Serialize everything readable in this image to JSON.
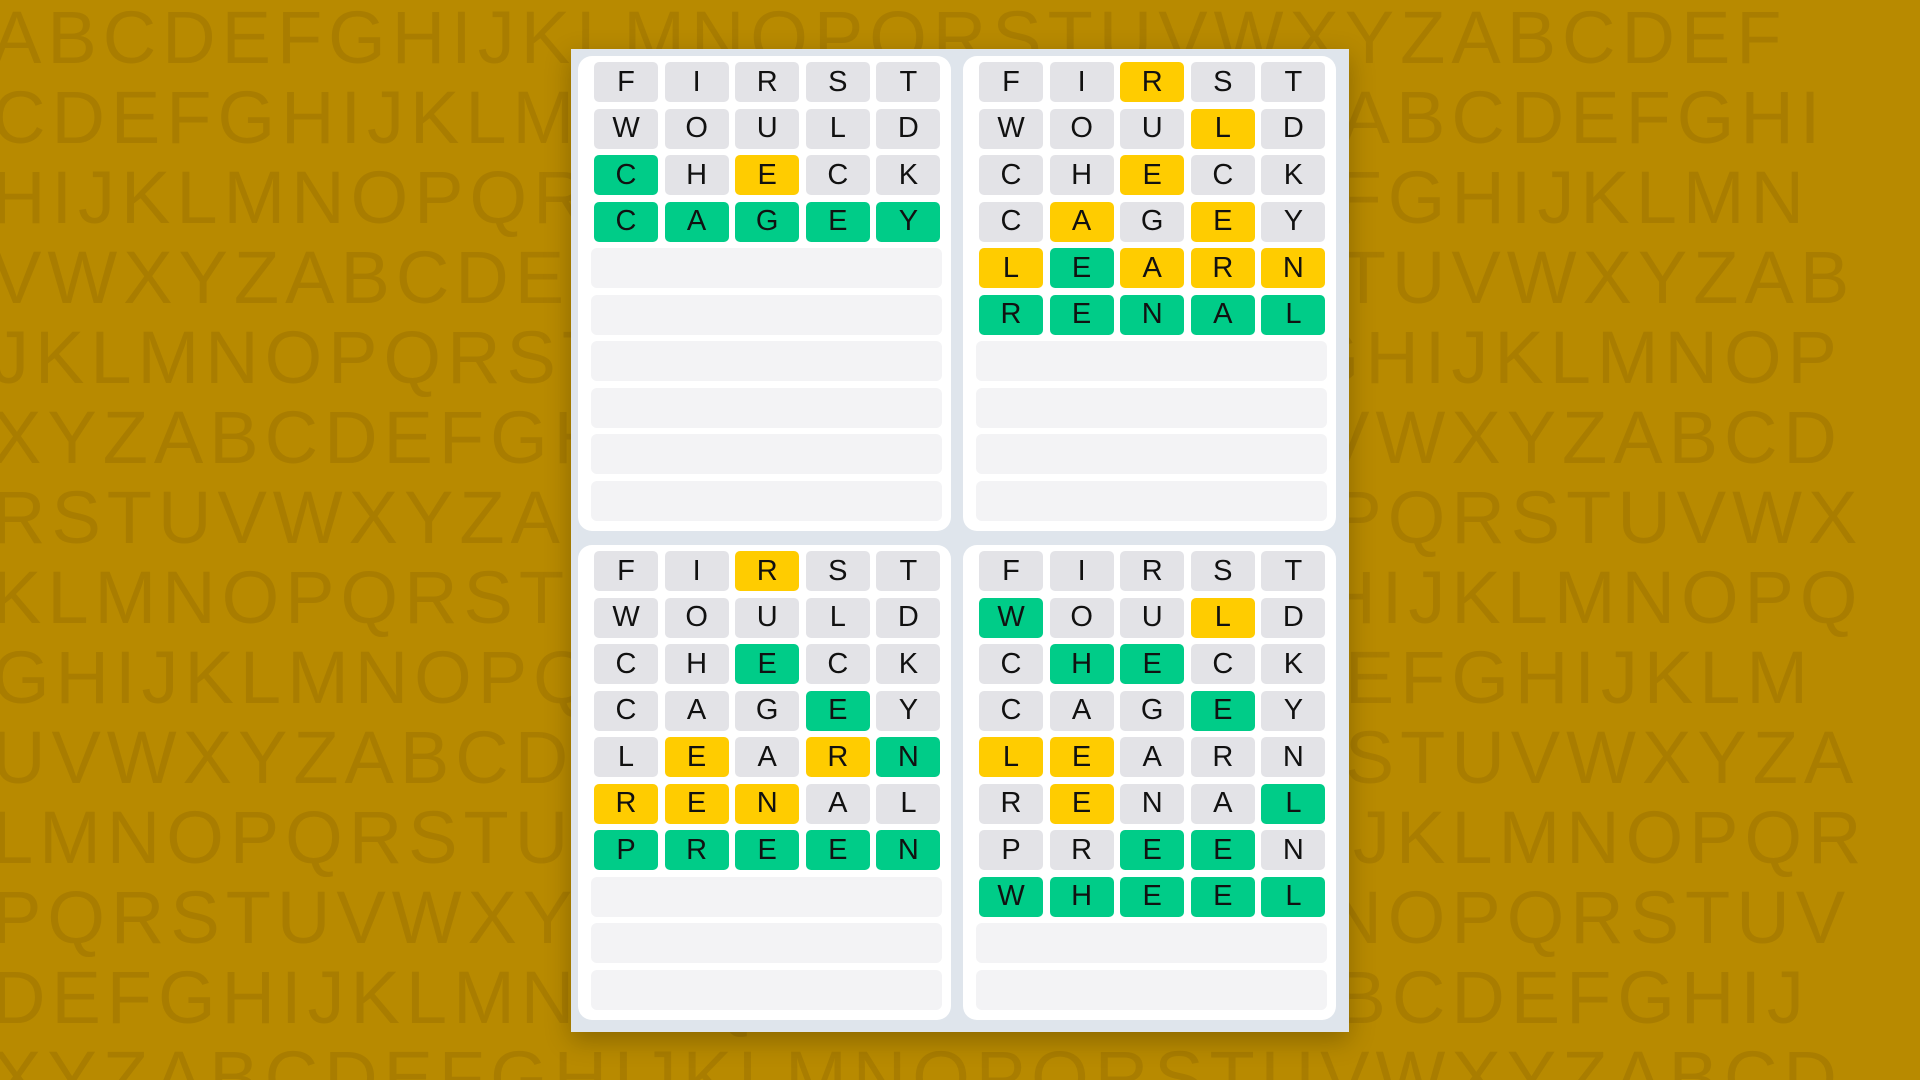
{
  "background_rows": [
    "ABCDEFGHIJKLMNOPQRSTUVWXYZABCDEF",
    "CDEFGHIJKLMNOPQRSTUVWXYZABCDEFGHI",
    "HIJKLMNOPQRSTUVWXYZABCDEFGHIJKLMN",
    "VWXYZABCDEFGHIJKLMNOPQRSTUVWXYZAB",
    "JKLMNOPQRSTUVWXYZABCDEFGHIJKLMNOP",
    "XYZABCDEFGHIJKLMNOPQRSTUVWXYZABCD",
    "RSTUVWXYZABCDEFGHIJKLMNOPQRSTUVWX",
    "KLMNOPQRSTUVWXYZABCDEFGHIJKLMNOPQ",
    "GHIJKLMNOPQRSTUVWXYZABCDEFGHIJKLM",
    "UVWXYZABCDEFGHIJKLMNOPQRSTUVWXYZA",
    "LMNOPQRSTUVWXYZABCDEFGHIJKLMNOPQR",
    "PQRSTUVWXYZABCDEFGHIJKLMNOPQRSTUV",
    "DEFGHIJKLMNOPQRSTUVWXYZABCDEFGHIJ",
    "XYZABCDEFGHIJKLMNOPQRSTUVWXYZABCD"
  ],
  "colors": {
    "correct": "#00cc88",
    "present": "#ffcc00",
    "absent": "#e3e3e7",
    "empty": "#f3f3f5",
    "background": "#b88a00"
  },
  "total_rows": 10,
  "boards": [
    {
      "guesses": [
        {
          "word": "FIRST",
          "states": "xxxxx"
        },
        {
          "word": "WOULD",
          "states": "xxxxx"
        },
        {
          "word": "CHECK",
          "states": "gxyxx"
        },
        {
          "word": "CAGEY",
          "states": "ggggg"
        }
      ]
    },
    {
      "guesses": [
        {
          "word": "FIRST",
          "states": "xxyxx"
        },
        {
          "word": "WOULD",
          "states": "xxxyx"
        },
        {
          "word": "CHECK",
          "states": "xxyxx"
        },
        {
          "word": "CAGEY",
          "states": "xyxyx"
        },
        {
          "word": "LEARN",
          "states": "ygyyy"
        },
        {
          "word": "RENAL",
          "states": "ggggg"
        }
      ]
    },
    {
      "guesses": [
        {
          "word": "FIRST",
          "states": "xxyxx"
        },
        {
          "word": "WOULD",
          "states": "xxxxx"
        },
        {
          "word": "CHECK",
          "states": "xxgxx"
        },
        {
          "word": "CAGEY",
          "states": "xxxgx"
        },
        {
          "word": "LEARN",
          "states": "xyxyg"
        },
        {
          "word": "RENAL",
          "states": "yyyxx"
        },
        {
          "word": "PREEN",
          "states": "ggggg"
        }
      ]
    },
    {
      "guesses": [
        {
          "word": "FIRST",
          "states": "xxxxx"
        },
        {
          "word": "WOULD",
          "states": "gxxyx"
        },
        {
          "word": "CHECK",
          "states": "xggxx"
        },
        {
          "word": "CAGEY",
          "states": "xxxgx"
        },
        {
          "word": "LEARN",
          "states": "yyxxx"
        },
        {
          "word": "RENAL",
          "states": "xyxxg"
        },
        {
          "word": "PREEN",
          "states": "xxggx"
        },
        {
          "word": "WHEEL",
          "states": "ggggg"
        }
      ]
    }
  ]
}
